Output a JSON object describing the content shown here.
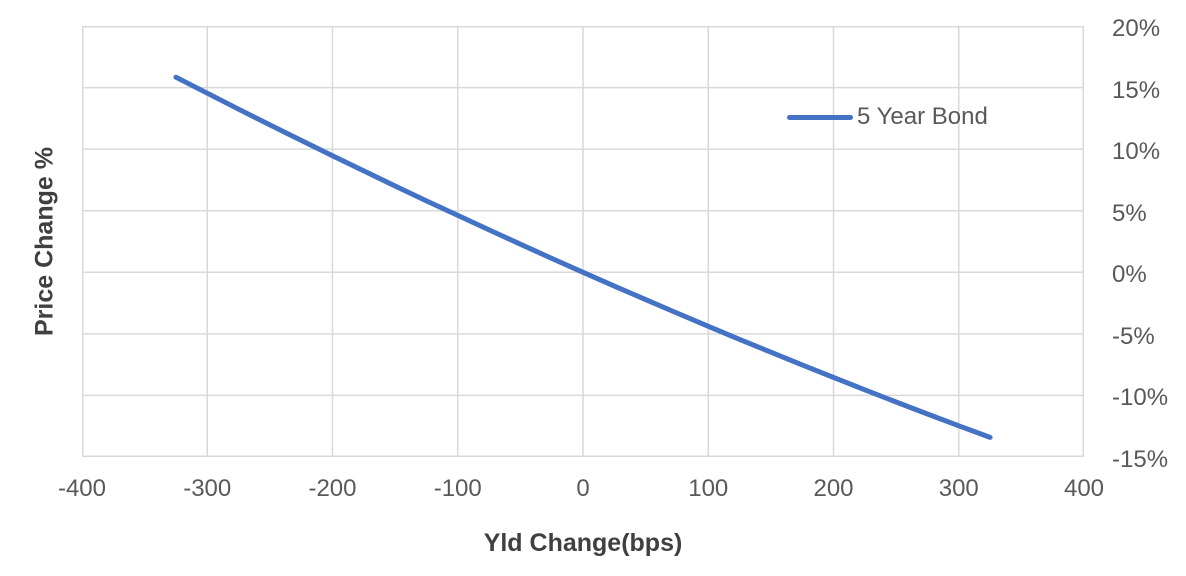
{
  "colors": {
    "background": "#FFFFFF",
    "line": "#4472C4",
    "grid": "#D9D9D9",
    "tick_text": "#595959",
    "title_text": "#404040"
  },
  "chart_data": {
    "type": "line",
    "xlabel": "Yld Change(bps)",
    "ylabel": "Price Change %",
    "xlim": [
      -400,
      400
    ],
    "ylim": [
      -15,
      20
    ],
    "grid": true,
    "legend_position": "inside-top-right",
    "x_ticks": {
      "values": [
        -400,
        -300,
        -200,
        -100,
        0,
        100,
        200,
        300,
        400
      ],
      "labels": [
        "-400",
        "-300",
        "-200",
        "-100",
        "0",
        "100",
        "200",
        "300",
        "400"
      ]
    },
    "y_ticks": {
      "side": "right",
      "values": [
        20,
        15,
        10,
        5,
        0,
        -5,
        -10,
        -15
      ],
      "labels": [
        "20%",
        "15%",
        "10%",
        "5%",
        "0%",
        "-5%",
        "-10%",
        "-15%"
      ]
    },
    "series": [
      {
        "name": "5 Year Bond",
        "color": "#4472C4",
        "x_bps": [
          -325,
          -300,
          -275,
          -250,
          -225,
          -200,
          -175,
          -150,
          -125,
          -100,
          -75,
          -50,
          -25,
          0,
          25,
          50,
          75,
          100,
          125,
          150,
          175,
          200,
          225,
          250,
          275,
          300,
          325
        ],
        "y_pct": [
          15.84,
          14.54,
          13.24,
          11.97,
          10.71,
          9.46,
          8.23,
          7.01,
          5.8,
          4.62,
          3.44,
          2.28,
          1.13,
          0.0,
          -1.12,
          -2.22,
          -3.31,
          -4.39,
          -5.45,
          -6.49,
          -7.52,
          -8.54,
          -9.54,
          -10.53,
          -11.51,
          -12.47,
          -13.41
        ]
      }
    ]
  }
}
